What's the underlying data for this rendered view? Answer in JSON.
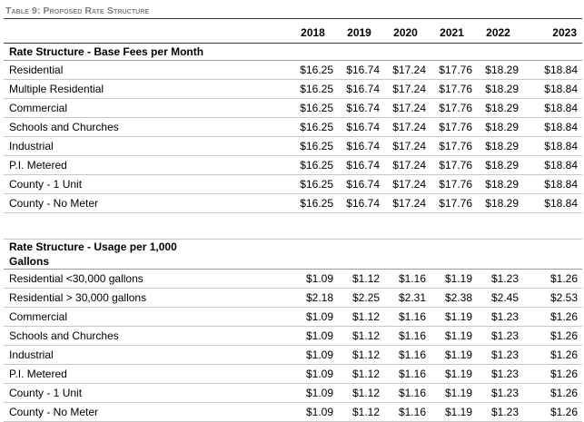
{
  "caption": "Table 9: Proposed Rate Structure",
  "years": [
    "2018",
    "2019",
    "2020",
    "2021",
    "2022",
    "2023"
  ],
  "base_fees": {
    "title": "Rate Structure - Base Fees per Month",
    "rows": [
      {
        "label": "Residential",
        "values": [
          "$16.25",
          "$16.74",
          "$17.24",
          "$17.76",
          "$18.29",
          "$18.84"
        ]
      },
      {
        "label": "Multiple Residential",
        "values": [
          "$16.25",
          "$16.74",
          "$17.24",
          "$17.76",
          "$18.29",
          "$18.84"
        ]
      },
      {
        "label": "Commercial",
        "values": [
          "$16.25",
          "$16.74",
          "$17.24",
          "$17.76",
          "$18.29",
          "$18.84"
        ]
      },
      {
        "label": "Schools and Churches",
        "values": [
          "$16.25",
          "$16.74",
          "$17.24",
          "$17.76",
          "$18.29",
          "$18.84"
        ]
      },
      {
        "label": "Industrial",
        "values": [
          "$16.25",
          "$16.74",
          "$17.24",
          "$17.76",
          "$18.29",
          "$18.84"
        ]
      },
      {
        "label": "P.I. Metered",
        "values": [
          "$16.25",
          "$16.74",
          "$17.24",
          "$17.76",
          "$18.29",
          "$18.84"
        ]
      },
      {
        "label": "County - 1 Unit",
        "values": [
          "$16.25",
          "$16.74",
          "$17.24",
          "$17.76",
          "$18.29",
          "$18.84"
        ]
      },
      {
        "label": "County - No Meter",
        "values": [
          "$16.25",
          "$16.74",
          "$17.24",
          "$17.76",
          "$18.29",
          "$18.84"
        ]
      }
    ]
  },
  "usage": {
    "title_line1": "Rate Structure - Usage per 1,000",
    "title_line2": "Gallons",
    "rows": [
      {
        "label": "Residential <30,000 gallons",
        "values": [
          "$1.09",
          "$1.12",
          "$1.16",
          "$1.19",
          "$1.23",
          "$1.26"
        ]
      },
      {
        "label": "Residential > 30,000 gallons",
        "values": [
          "$2.18",
          "$2.25",
          "$2.31",
          "$2.38",
          "$2.45",
          "$2.53"
        ]
      },
      {
        "label": "Commercial",
        "values": [
          "$1.09",
          "$1.12",
          "$1.16",
          "$1.19",
          "$1.23",
          "$1.26"
        ]
      },
      {
        "label": "Schools and Churches",
        "values": [
          "$1.09",
          "$1.12",
          "$1.16",
          "$1.19",
          "$1.23",
          "$1.26"
        ]
      },
      {
        "label": "Industrial",
        "values": [
          "$1.09",
          "$1.12",
          "$1.16",
          "$1.19",
          "$1.23",
          "$1.26"
        ]
      },
      {
        "label": "P.I. Metered",
        "values": [
          "$1.09",
          "$1.12",
          "$1.16",
          "$1.19",
          "$1.23",
          "$1.26"
        ]
      },
      {
        "label": "County - 1 Unit",
        "values": [
          "$1.09",
          "$1.12",
          "$1.16",
          "$1.19",
          "$1.23",
          "$1.26"
        ]
      },
      {
        "label": "County - No Meter",
        "values": [
          "$1.09",
          "$1.12",
          "$1.16",
          "$1.19",
          "$1.23",
          "$1.26"
        ]
      }
    ]
  }
}
